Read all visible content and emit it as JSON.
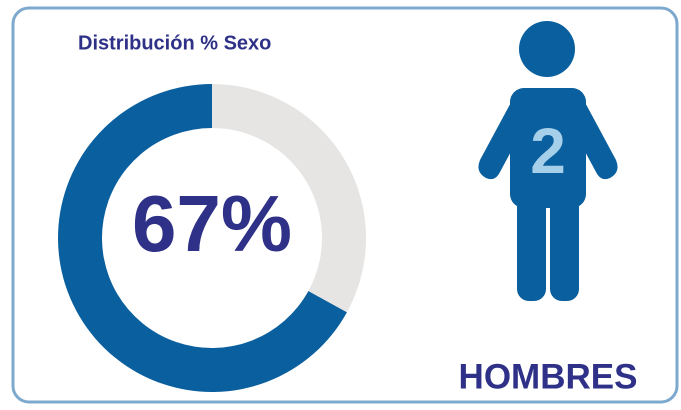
{
  "chart_data": {
    "type": "donut",
    "title": "Distribución % Sexo",
    "values": [
      67,
      33
    ],
    "value_labels": [
      "67%",
      null
    ],
    "colors": [
      "#0a5f9e",
      "#e6e5e4"
    ],
    "icon": {
      "count": 2,
      "label": "HOMBRES",
      "color": "#0a5f9e",
      "count_color": "#a6cfea"
    }
  }
}
